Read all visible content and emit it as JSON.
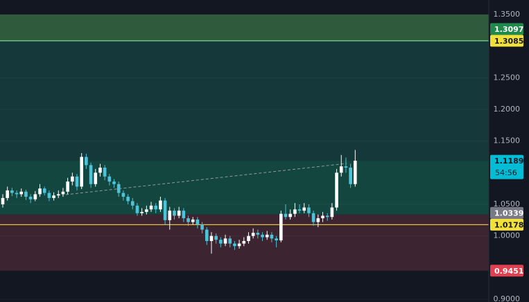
{
  "chart_data": {
    "type": "candlestick",
    "ylim": [
      0.9,
      1.35
    ],
    "yticks": [
      {
        "value": 1.35,
        "label": "1.3500"
      },
      {
        "value": 1.25,
        "label": "1.2500"
      },
      {
        "value": 1.2,
        "label": "1.2000"
      },
      {
        "value": 1.15,
        "label": "1.1500"
      },
      {
        "value": 1.05,
        "label": "1.0500"
      },
      {
        "value": 1.0,
        "label": "1.0000"
      },
      {
        "value": 0.9,
        "label": "0.9000"
      }
    ],
    "grid": true,
    "up_color": "#ffffff",
    "down_color": "#4dc3d9",
    "zones": [
      {
        "from": 1.35,
        "to": 1.3085,
        "color": "#2f5a3b"
      },
      {
        "from": 1.3085,
        "to": 1.1189,
        "color": "#15393a"
      },
      {
        "from": 1.1189,
        "to": 1.0339,
        "color": "#12463f"
      },
      {
        "from": 1.0339,
        "to": 0.9451,
        "color": "#3c2430"
      }
    ],
    "lines": [
      {
        "value": 1.3085,
        "color": "#7ed68a"
      },
      {
        "value": 1.0178,
        "color": "#e3c341"
      }
    ],
    "price_labels": [
      {
        "value": 1.3097,
        "color": "#1f8a4c",
        "text_color": "#ffffff"
      },
      {
        "value": 1.3085,
        "color": "#f2e03a",
        "text_color": "#131722"
      },
      {
        "value": 1.1189,
        "color": "#00bcd4",
        "text_color": "#131722",
        "countdown": "54:56"
      },
      {
        "value": 1.0339,
        "color": "#787b86",
        "text_color": "#ffffff"
      },
      {
        "value": 1.0178,
        "color": "#f2e03a",
        "text_color": "#131722"
      },
      {
        "value": 0.9451,
        "color": "#e0404f",
        "text_color": "#ffffff"
      }
    ],
    "ohlc": [
      [
        1.05,
        1.066,
        1.045,
        1.06
      ],
      [
        1.06,
        1.078,
        1.056,
        1.072
      ],
      [
        1.072,
        1.076,
        1.063,
        1.068
      ],
      [
        1.068,
        1.072,
        1.06,
        1.066
      ],
      [
        1.066,
        1.075,
        1.062,
        1.07
      ],
      [
        1.07,
        1.073,
        1.057,
        1.062
      ],
      [
        1.062,
        1.066,
        1.052,
        1.058
      ],
      [
        1.058,
        1.071,
        1.055,
        1.066
      ],
      [
        1.066,
        1.082,
        1.062,
        1.075
      ],
      [
        1.075,
        1.078,
        1.064,
        1.068
      ],
      [
        1.068,
        1.072,
        1.055,
        1.06
      ],
      [
        1.06,
        1.069,
        1.056,
        1.064
      ],
      [
        1.064,
        1.072,
        1.06,
        1.066
      ],
      [
        1.066,
        1.076,
        1.062,
        1.07
      ],
      [
        1.07,
        1.092,
        1.066,
        1.086
      ],
      [
        1.086,
        1.1,
        1.08,
        1.094
      ],
      [
        1.094,
        1.098,
        1.072,
        1.078
      ],
      [
        1.078,
        1.131,
        1.074,
        1.125
      ],
      [
        1.125,
        1.13,
        1.106,
        1.112
      ],
      [
        1.112,
        1.116,
        1.076,
        1.082
      ],
      [
        1.082,
        1.106,
        1.078,
        1.1
      ],
      [
        1.1,
        1.114,
        1.094,
        1.108
      ],
      [
        1.108,
        1.112,
        1.088,
        1.094
      ],
      [
        1.094,
        1.098,
        1.08,
        1.086
      ],
      [
        1.086,
        1.09,
        1.076,
        1.082
      ],
      [
        1.082,
        1.086,
        1.062,
        1.068
      ],
      [
        1.068,
        1.072,
        1.056,
        1.062
      ],
      [
        1.062,
        1.066,
        1.05,
        1.055
      ],
      [
        1.055,
        1.06,
        1.042,
        1.048
      ],
      [
        1.048,
        1.052,
        1.032,
        1.036
      ],
      [
        1.036,
        1.044,
        1.032,
        1.038
      ],
      [
        1.038,
        1.048,
        1.034,
        1.042
      ],
      [
        1.042,
        1.054,
        1.038,
        1.048
      ],
      [
        1.048,
        1.052,
        1.036,
        1.042
      ],
      [
        1.042,
        1.062,
        1.038,
        1.056
      ],
      [
        1.056,
        1.06,
        1.018,
        1.025
      ],
      [
        1.025,
        1.046,
        1.01,
        1.04
      ],
      [
        1.04,
        1.044,
        1.026,
        1.032
      ],
      [
        1.032,
        1.046,
        1.028,
        1.04
      ],
      [
        1.04,
        1.044,
        1.022,
        1.028
      ],
      [
        1.028,
        1.032,
        1.016,
        1.022
      ],
      [
        1.022,
        1.03,
        1.018,
        1.026
      ],
      [
        1.026,
        1.03,
        1.012,
        1.018
      ],
      [
        1.018,
        1.022,
        1.004,
        1.01
      ],
      [
        1.01,
        1.014,
        0.986,
        0.992
      ],
      [
        0.992,
        1.006,
        0.972,
        1.0
      ],
      [
        1.0,
        1.004,
        0.988,
        0.994
      ],
      [
        0.994,
        0.998,
        0.982,
        0.988
      ],
      [
        0.988,
        1.002,
        0.984,
        0.996
      ],
      [
        0.996,
        1.0,
        0.982,
        0.988
      ],
      [
        0.988,
        0.992,
        0.978,
        0.984
      ],
      [
        0.984,
        0.994,
        0.98,
        0.988
      ],
      [
        0.988,
        0.998,
        0.984,
        0.992
      ],
      [
        0.992,
        1.006,
        0.988,
        1.0
      ],
      [
        1.0,
        1.012,
        0.996,
        1.005
      ],
      [
        1.005,
        1.01,
        0.996,
        1.002
      ],
      [
        1.002,
        1.006,
        0.992,
        0.998
      ],
      [
        0.998,
        1.008,
        0.994,
        1.002
      ],
      [
        1.002,
        1.006,
        0.99,
        0.996
      ],
      [
        0.996,
        1.0,
        0.982,
        0.993
      ],
      [
        0.993,
        1.04,
        0.99,
        1.035
      ],
      [
        1.035,
        1.05,
        1.026,
        1.03
      ],
      [
        1.03,
        1.042,
        1.026,
        1.035
      ],
      [
        1.035,
        1.052,
        1.03,
        1.042
      ],
      [
        1.042,
        1.05,
        1.036,
        1.04
      ],
      [
        1.04,
        1.052,
        1.036,
        1.045
      ],
      [
        1.045,
        1.05,
        1.03,
        1.036
      ],
      [
        1.036,
        1.04,
        1.016,
        1.022
      ],
      [
        1.022,
        1.034,
        1.014,
        1.028
      ],
      [
        1.028,
        1.038,
        1.022,
        1.032
      ],
      [
        1.032,
        1.036,
        1.024,
        1.03
      ],
      [
        1.03,
        1.052,
        1.026,
        1.045
      ],
      [
        1.045,
        1.106,
        1.04,
        1.1
      ],
      [
        1.1,
        1.128,
        1.094,
        1.11
      ],
      [
        1.11,
        1.124,
        1.1,
        1.108
      ],
      [
        1.108,
        1.114,
        1.076,
        1.082
      ],
      [
        1.082,
        1.136,
        1.078,
        1.119
      ]
    ]
  }
}
